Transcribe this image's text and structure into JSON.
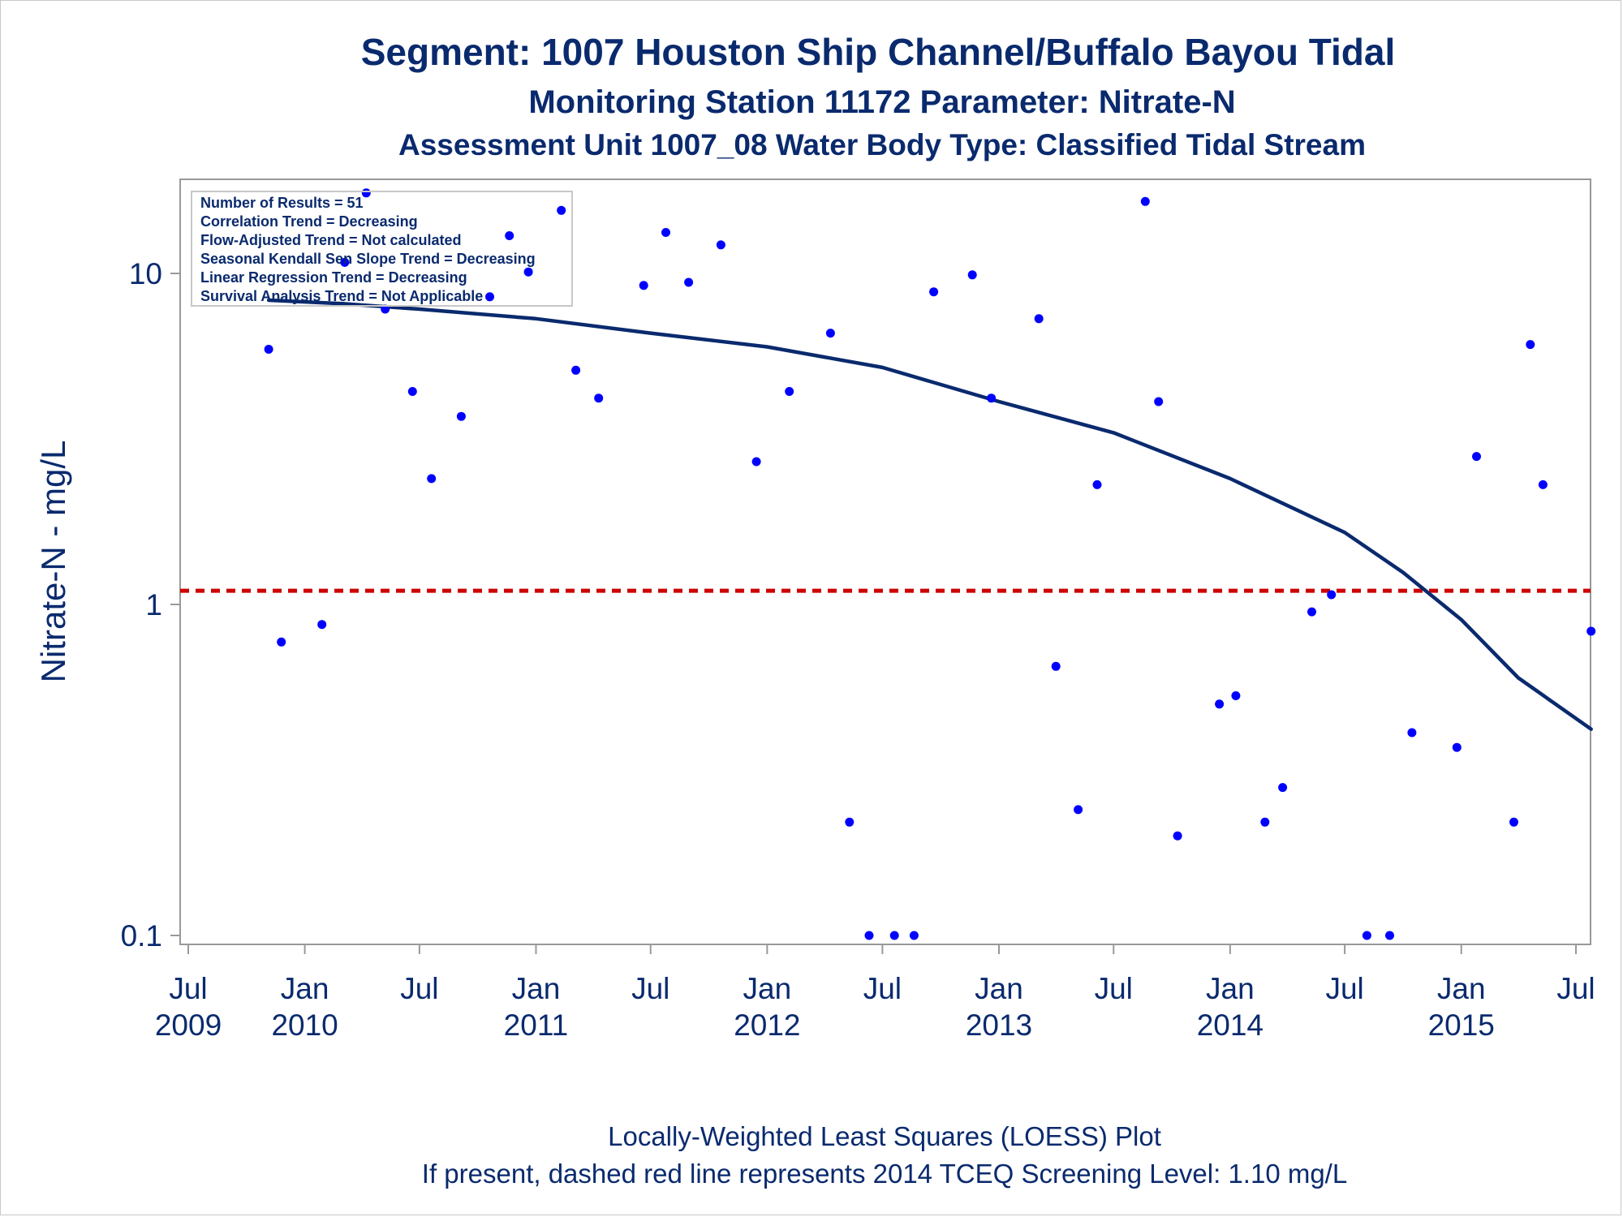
{
  "titles": {
    "line1": "Segment: 1007  Houston Ship Channel/Buffalo Bayou Tidal",
    "line2": "Monitoring Station 11172 Parameter: Nitrate-N",
    "line3": "Assessment Unit 1007_08   Water Body Type: Classified Tidal Stream"
  },
  "footnotes": {
    "line1": "Locally-Weighted Least Squares (LOESS) Plot",
    "line2": "If present, dashed red line represents 2014 TCEQ Screening Level: 1.10 mg/L"
  },
  "stats_box": [
    "Number of Results = 51",
    "Correlation Trend = Decreasing",
    "Flow-Adjusted Trend = Not calculated",
    "Seasonal Kendall Sen Slope Trend = Decreasing",
    "Linear Regression Trend = Decreasing",
    "Survival Analysis Trend = Not Applicable"
  ],
  "colors": {
    "points": "#0000ff",
    "loess": "#0a2a6e",
    "screening_line": "#cc0000",
    "text": "#0a2a6e",
    "axis": "#999999"
  },
  "chart_data": {
    "type": "scatter",
    "title": "Segment: 1007  Houston Ship Channel/Buffalo Bayou Tidal",
    "ylabel": "Nitrate-N - mg/L",
    "xlabel": "",
    "yscale": "log",
    "ylim": [
      0.09,
      18
    ],
    "xlim": [
      "2009-07-01",
      "2015-07-01"
    ],
    "yticks": [
      {
        "value": 0.1,
        "label": "0.1"
      },
      {
        "value": 1,
        "label": "1"
      },
      {
        "value": 10,
        "label": "10"
      }
    ],
    "xticks": [
      {
        "date": "2009-07-01",
        "line1": "Jul",
        "line2": "2009"
      },
      {
        "date": "2010-01-01",
        "line1": "Jan",
        "line2": "2010"
      },
      {
        "date": "2010-07-01",
        "line1": "Jul",
        "line2": ""
      },
      {
        "date": "2011-01-01",
        "line1": "Jan",
        "line2": "2011"
      },
      {
        "date": "2011-07-01",
        "line1": "Jul",
        "line2": ""
      },
      {
        "date": "2012-01-01",
        "line1": "Jan",
        "line2": "2012"
      },
      {
        "date": "2012-07-01",
        "line1": "Jul",
        "line2": ""
      },
      {
        "date": "2013-01-01",
        "line1": "Jan",
        "line2": "2013"
      },
      {
        "date": "2013-07-01",
        "line1": "Jul",
        "line2": ""
      },
      {
        "date": "2014-01-01",
        "line1": "Jan",
        "line2": "2014"
      },
      {
        "date": "2014-07-01",
        "line1": "Jul",
        "line2": ""
      },
      {
        "date": "2015-01-01",
        "line1": "Jan",
        "line2": "2015"
      },
      {
        "date": "2015-07-01",
        "line1": "Jul",
        "line2": ""
      }
    ],
    "screening_level": 1.1,
    "points": [
      {
        "x": "2009-11-05",
        "y": 5.9
      },
      {
        "x": "2009-11-25",
        "y": 0.77
      },
      {
        "x": "2010-01-28",
        "y": 0.87
      },
      {
        "x": "2010-03-05",
        "y": 10.8
      },
      {
        "x": "2010-04-08",
        "y": 17.5
      },
      {
        "x": "2010-05-08",
        "y": 7.8
      },
      {
        "x": "2010-06-20",
        "y": 4.4
      },
      {
        "x": "2010-07-20",
        "y": 2.4
      },
      {
        "x": "2010-09-05",
        "y": 3.7
      },
      {
        "x": "2010-10-20",
        "y": 8.5
      },
      {
        "x": "2010-11-20",
        "y": 13.0
      },
      {
        "x": "2010-12-20",
        "y": 10.1
      },
      {
        "x": "2011-02-10",
        "y": 15.5
      },
      {
        "x": "2011-03-05",
        "y": 5.1
      },
      {
        "x": "2011-04-10",
        "y": 4.2
      },
      {
        "x": "2011-06-20",
        "y": 9.2
      },
      {
        "x": "2011-07-25",
        "y": 13.3
      },
      {
        "x": "2011-08-30",
        "y": 9.4
      },
      {
        "x": "2011-10-20",
        "y": 12.2
      },
      {
        "x": "2011-12-15",
        "y": 2.7
      },
      {
        "x": "2012-02-05",
        "y": 4.4
      },
      {
        "x": "2012-04-10",
        "y": 6.6
      },
      {
        "x": "2012-05-10",
        "y": 0.22
      },
      {
        "x": "2012-06-10",
        "y": 0.1
      },
      {
        "x": "2012-07-20",
        "y": 0.1
      },
      {
        "x": "2012-08-20",
        "y": 0.1
      },
      {
        "x": "2012-09-20",
        "y": 8.8
      },
      {
        "x": "2012-11-20",
        "y": 9.9
      },
      {
        "x": "2012-12-20",
        "y": 4.2
      },
      {
        "x": "2013-03-05",
        "y": 7.3
      },
      {
        "x": "2013-04-01",
        "y": 0.65
      },
      {
        "x": "2013-05-06",
        "y": 0.24
      },
      {
        "x": "2013-06-05",
        "y": 2.3
      },
      {
        "x": "2013-08-20",
        "y": 16.5
      },
      {
        "x": "2013-09-10",
        "y": 4.1
      },
      {
        "x": "2013-10-10",
        "y": 0.2
      },
      {
        "x": "2013-12-15",
        "y": 0.5
      },
      {
        "x": "2014-01-10",
        "y": 0.53
      },
      {
        "x": "2014-02-25",
        "y": 0.22
      },
      {
        "x": "2014-03-25",
        "y": 0.28
      },
      {
        "x": "2014-05-10",
        "y": 0.95
      },
      {
        "x": "2014-06-10",
        "y": 1.07
      },
      {
        "x": "2014-08-05",
        "y": 0.1
      },
      {
        "x": "2014-09-10",
        "y": 0.1
      },
      {
        "x": "2014-10-15",
        "y": 0.41
      },
      {
        "x": "2014-12-25",
        "y": 0.37
      },
      {
        "x": "2015-01-25",
        "y": 2.8
      },
      {
        "x": "2015-03-25",
        "y": 0.22
      },
      {
        "x": "2015-04-20",
        "y": 6.1
      },
      {
        "x": "2015-05-10",
        "y": 2.3
      },
      {
        "x": "2015-07-25",
        "y": 0.83
      }
    ],
    "loess": [
      {
        "x": "2009-11-05",
        "y": 8.3
      },
      {
        "x": "2010-03-01",
        "y": 8.1
      },
      {
        "x": "2010-07-01",
        "y": 7.8
      },
      {
        "x": "2011-01-01",
        "y": 7.3
      },
      {
        "x": "2011-07-01",
        "y": 6.6
      },
      {
        "x": "2012-01-01",
        "y": 6.0
      },
      {
        "x": "2012-07-01",
        "y": 5.2
      },
      {
        "x": "2013-01-01",
        "y": 4.1
      },
      {
        "x": "2013-07-01",
        "y": 3.3
      },
      {
        "x": "2014-01-01",
        "y": 2.4
      },
      {
        "x": "2014-07-01",
        "y": 1.65
      },
      {
        "x": "2014-10-01",
        "y": 1.25
      },
      {
        "x": "2015-01-01",
        "y": 0.9
      },
      {
        "x": "2015-04-01",
        "y": 0.6
      },
      {
        "x": "2015-07-25",
        "y": 0.42
      }
    ]
  }
}
